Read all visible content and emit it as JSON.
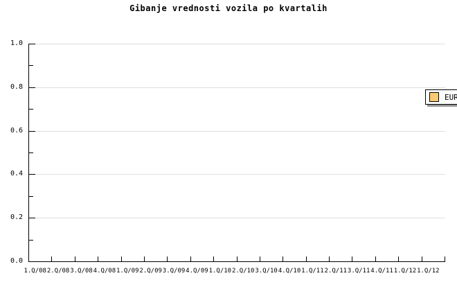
{
  "title": "Gibanje vrednosti vozila po kvartalih",
  "legend": {
    "position": "top-right",
    "items": [
      {
        "label": "EUR",
        "swatch_color": "#facb72"
      }
    ]
  },
  "axes": {
    "y": {
      "min": 0.0,
      "max": 1.0,
      "major_step": 0.2,
      "minor_step": 0.1,
      "tick_labels": [
        "1.0",
        "0.8",
        "0.6",
        "0.4",
        "0.2",
        "0.0"
      ]
    },
    "x": {
      "tick_labels": [
        "1.Q/08",
        "2.Q/08",
        "3.Q/08",
        "4.Q/08",
        "1.Q/09",
        "2.Q/09",
        "3.Q/09",
        "4.Q/09",
        "1.Q/10",
        "2.Q/10",
        "3.Q/10",
        "4.Q/10",
        "1.Q/11",
        "2.Q/11",
        "3.Q/11",
        "4.Q/11",
        "1.Q/12",
        "1.Q/12"
      ]
    }
  },
  "colors": {
    "background": "#ffffff",
    "axis": "#000000",
    "gridline": "#dedede",
    "legend_background": "#fcfcfc",
    "legend_border": "#000000",
    "legend_shadow": "#999999",
    "series_eur": "#facb72"
  },
  "chart_data": {
    "type": "line",
    "title": "Gibanje vrednosti vozila po kvartalih",
    "xlabel": "",
    "ylabel": "",
    "categories": [
      "1.Q/08",
      "2.Q/08",
      "3.Q/08",
      "4.Q/08",
      "1.Q/09",
      "2.Q/09",
      "3.Q/09",
      "4.Q/09",
      "1.Q/10",
      "2.Q/10",
      "3.Q/10",
      "4.Q/10",
      "1.Q/11",
      "2.Q/11",
      "3.Q/11",
      "4.Q/11",
      "1.Q/12",
      "1.Q/12"
    ],
    "series": [
      {
        "name": "EUR",
        "color": "#facb72",
        "values": []
      }
    ],
    "ylim": [
      0.0,
      1.0
    ],
    "y_major_step": 0.2,
    "y_minor_step": 0.1,
    "grid": "horizontal-major",
    "legend_position": "top-right",
    "plot_empty": true
  }
}
